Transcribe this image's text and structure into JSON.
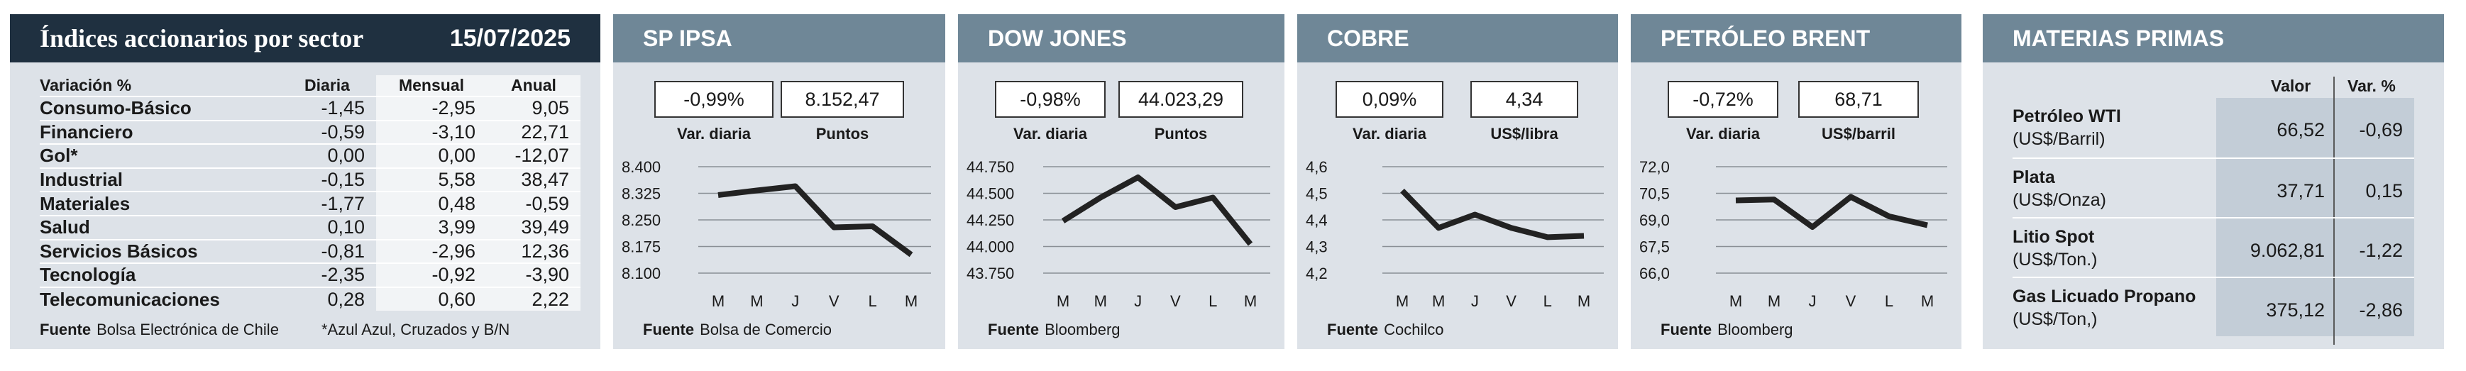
{
  "sector_panel": {
    "title": "Índices accionarios por sector",
    "date": "15/07/2025",
    "columns": [
      "Variación %",
      "Diaria",
      "Mensual",
      "Anual"
    ],
    "rows": [
      {
        "name": "Consumo-Básico",
        "diaria": "-1,45",
        "mensual": "-2,95",
        "anual": "9,05"
      },
      {
        "name": "Financiero",
        "diaria": "-0,59",
        "mensual": "-3,10",
        "anual": "22,71"
      },
      {
        "name": "Gol*",
        "diaria": "0,00",
        "mensual": "0,00",
        "anual": "-12,07"
      },
      {
        "name": "Industrial",
        "diaria": "-0,15",
        "mensual": "5,58",
        "anual": "38,47"
      },
      {
        "name": "Materiales",
        "diaria": "-1,77",
        "mensual": "0,48",
        "anual": "-0,59"
      },
      {
        "name": "Salud",
        "diaria": "0,10",
        "mensual": "3,99",
        "anual": "39,49"
      },
      {
        "name": "Servicios Básicos",
        "diaria": "-0,81",
        "mensual": "-2,96",
        "anual": "12,36"
      },
      {
        "name": "Tecnología",
        "diaria": "-2,35",
        "mensual": "-0,92",
        "anual": "-3,90"
      },
      {
        "name": "Telecomunicaciones",
        "diaria": "0,28",
        "mensual": "0,60",
        "anual": "2,22"
      }
    ],
    "source_label": "Fuente",
    "source": "Bolsa Electrónica de Chile",
    "note": "*Azul Azul, Cruzados y B/N"
  },
  "chart_data": [
    {
      "type": "line",
      "title": "SP IPSA",
      "var_value": "-0,99%",
      "var_label": "Var. diaria",
      "level_value": "8.152,47",
      "level_label": "Puntos",
      "x": [
        "M",
        "M",
        "J",
        "V",
        "L",
        "M"
      ],
      "y_ticks": [
        "8.400",
        "8.325",
        "8.250",
        "8.175",
        "8.100"
      ],
      "ylim": [
        8100,
        8400
      ],
      "values": [
        8320,
        8333,
        8345,
        8229,
        8232,
        8152
      ],
      "source_label": "Fuente",
      "source": "Bolsa de Comercio"
    },
    {
      "type": "line",
      "title": "DOW JONES",
      "var_value": "-0,98%",
      "var_label": "Var. diaria",
      "level_value": "44.023,29",
      "level_label": "Puntos",
      "x": [
        "M",
        "M",
        "J",
        "V",
        "L",
        "M"
      ],
      "y_ticks": [
        "44.750",
        "44.500",
        "44.250",
        "44.000",
        "43.750"
      ],
      "ylim": [
        43750,
        44750
      ],
      "values": [
        44240,
        44460,
        44650,
        44370,
        44460,
        44023
      ],
      "source_label": "Fuente",
      "source": "Bloomberg"
    },
    {
      "type": "line",
      "title": "COBRE",
      "var_value": "0,09%",
      "var_label": "Var. diaria",
      "level_value": "4,34",
      "level_label": "US$/libra",
      "x": [
        "M",
        "M",
        "J",
        "V",
        "L",
        "M"
      ],
      "y_ticks": [
        "4,6",
        "4,5",
        "4,4",
        "4,3",
        "4,2"
      ],
      "ylim": [
        4.2,
        4.6
      ],
      "values": [
        4.51,
        4.37,
        4.42,
        4.37,
        4.335,
        4.34
      ],
      "source_label": "Fuente",
      "source": "Cochilco"
    },
    {
      "type": "line",
      "title": "PETRÓLEO BRENT",
      "var_value": "-0,72%",
      "var_label": "Var. diaria",
      "level_value": "68,71",
      "level_label": "US$/barril",
      "x": [
        "M",
        "M",
        "J",
        "V",
        "L",
        "M"
      ],
      "y_ticks": [
        "72,0",
        "70,5",
        "69,0",
        "67,5",
        "66,0"
      ],
      "ylim": [
        66,
        72
      ],
      "values": [
        70.1,
        70.15,
        68.6,
        70.3,
        69.2,
        68.7
      ],
      "source_label": "Fuente",
      "source": "Bloomberg"
    },
    {
      "type": "table",
      "title": "MATERIAS PRIMAS",
      "columns": [
        "Valor",
        "Var. %"
      ],
      "rows": [
        {
          "name": "Petróleo WTI",
          "unit": "(US$/Barril)",
          "valor": "66,52",
          "var": "-0,69"
        },
        {
          "name": "Plata",
          "unit": "(US$/Onza)",
          "valor": "37,71",
          "var": "0,15"
        },
        {
          "name": "Litio Spot",
          "unit": "(US$/Ton.)",
          "valor": "9.062,81",
          "var": "-1,22"
        },
        {
          "name": "Gas Licuado Propano",
          "unit": "(US$/Ton,)",
          "valor": "375,12",
          "var": "-2,86"
        }
      ]
    }
  ]
}
